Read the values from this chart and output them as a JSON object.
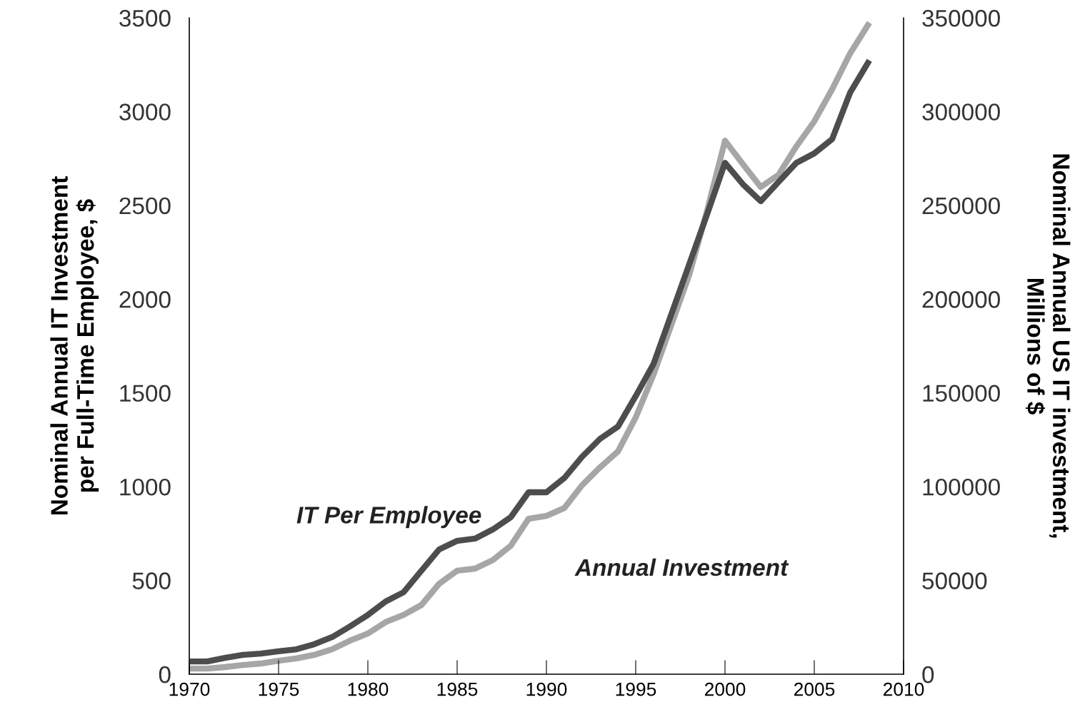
{
  "chart_data": {
    "type": "line",
    "ylabel": "Nominal Annual IT Investment\nper Full-Time Employee, $",
    "y2label": "Nominal Annual US IT investment,\nMillions of $",
    "xlim": [
      1970,
      2010
    ],
    "xticks": [
      1970,
      1975,
      1980,
      1985,
      1990,
      1995,
      2000,
      2005,
      2010
    ],
    "ylim": [
      0,
      3500
    ],
    "yticks": [
      0,
      500,
      1000,
      1500,
      2000,
      2500,
      3000,
      3500
    ],
    "y2lim": [
      0,
      350000
    ],
    "y2ticks": [
      0,
      50000,
      100000,
      150000,
      200000,
      250000,
      300000,
      350000
    ],
    "grid": false,
    "legend": false,
    "marker": "none",
    "line_style": "solid",
    "x": [
      1970,
      1971,
      1972,
      1973,
      1974,
      1975,
      1976,
      1977,
      1978,
      1979,
      1980,
      1981,
      1982,
      1983,
      1984,
      1985,
      1986,
      1987,
      1988,
      1989,
      1990,
      1991,
      1992,
      1993,
      1994,
      1995,
      1996,
      1997,
      1998,
      1999,
      2000,
      2001,
      2002,
      2003,
      2004,
      2005,
      2006,
      2007,
      2008
    ],
    "series": [
      {
        "name": "Annual Investment",
        "color": "#a6a6a6",
        "axis": "y2",
        "values": [
          3000,
          3000,
          3800,
          4900,
          5700,
          7200,
          8400,
          10300,
          13300,
          17900,
          21700,
          27800,
          31600,
          36900,
          48300,
          55200,
          56300,
          60900,
          68500,
          82900,
          84400,
          88600,
          100800,
          110300,
          118700,
          136900,
          159800,
          186400,
          213000,
          247200,
          284500,
          272000,
          259800,
          266300,
          281500,
          294800,
          311900,
          330900,
          346100
        ]
      },
      {
        "name": "IT Per Employee",
        "color": "#4d4d4d",
        "values": [
          68,
          68,
          87,
          103,
          110,
          122,
          133,
          160,
          198,
          255,
          316,
          388,
          437,
          552,
          666,
          711,
          723,
          772,
          837,
          970,
          970,
          1046,
          1160,
          1255,
          1320,
          1483,
          1655,
          1921,
          2187,
          2453,
          2727,
          2613,
          2522,
          2625,
          2727,
          2777,
          2853,
          3100,
          3260
        ]
      }
    ]
  }
}
